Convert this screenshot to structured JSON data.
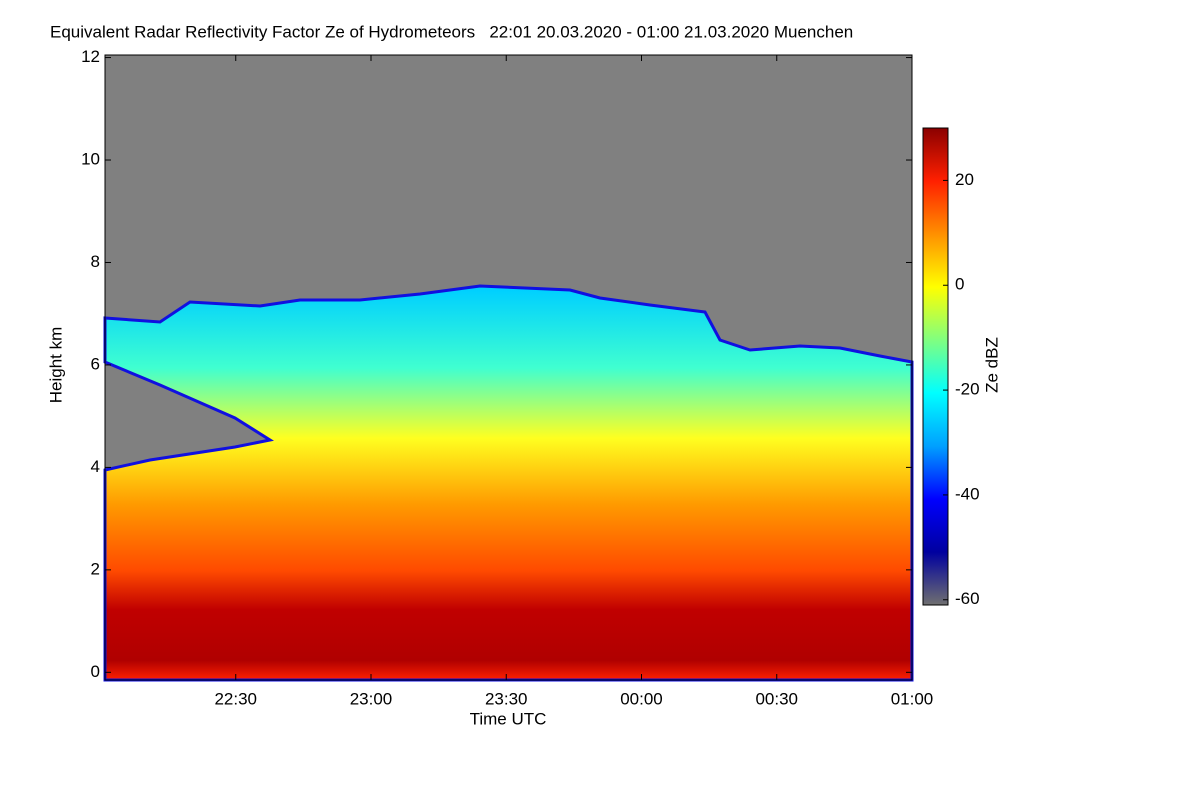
{
  "chart_data": {
    "type": "heatmap",
    "title": "Equivalent Radar Reflectivity Factor Ze of Hydrometeors   22:01 20.03.2020 - 01:00 21.03.2020 Muenchen",
    "xlabel": "Time UTC",
    "ylabel": "Height km",
    "xlim": [
      1,
      180
    ],
    "xticks": [
      {
        "value": 30,
        "label": "22:30"
      },
      {
        "value": 60,
        "label": "23:00"
      },
      {
        "value": 90,
        "label": "23:30"
      },
      {
        "value": 120,
        "label": "00:00"
      },
      {
        "value": 150,
        "label": "00:30"
      },
      {
        "value": 180,
        "label": "01:00"
      }
    ],
    "ylim": [
      -0.15,
      12.05
    ],
    "yticks": [
      0,
      2,
      4,
      6,
      8,
      10,
      12
    ],
    "colorbar": {
      "label": "Ze dBZ",
      "lim": [
        -61,
        30
      ],
      "ticks": [
        -60,
        -40,
        -20,
        0,
        20
      ],
      "colormap": [
        "#707070",
        "#00009f",
        "#0000ff",
        "#00a0ff",
        "#00ffff",
        "#80ff80",
        "#ffff00",
        "#ff9000",
        "#ff2000",
        "#8b0000"
      ]
    }
  }
}
